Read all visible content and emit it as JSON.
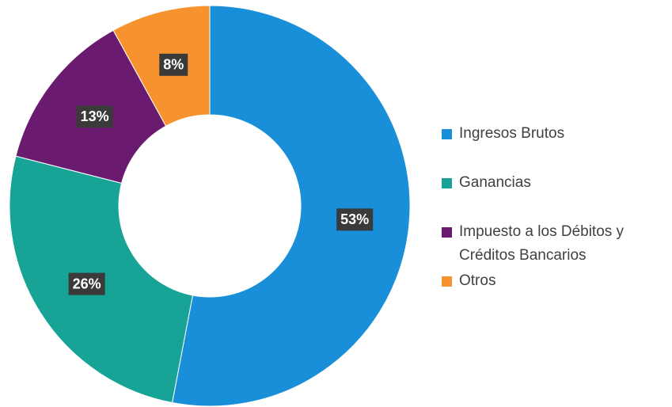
{
  "chart_data": {
    "type": "donut",
    "categories": [
      "Ingresos Brutos",
      "Ganancias",
      "Impuesto a los Débitos y Créditos Bancarios",
      "Otros"
    ],
    "values": [
      53,
      26,
      13,
      8
    ],
    "value_labels": [
      "53%",
      "26%",
      "13%",
      "8%"
    ],
    "colors": [
      "#1a8fd9",
      "#17a395",
      "#6b1b6f",
      "#f7932f"
    ],
    "legend": "right"
  }
}
